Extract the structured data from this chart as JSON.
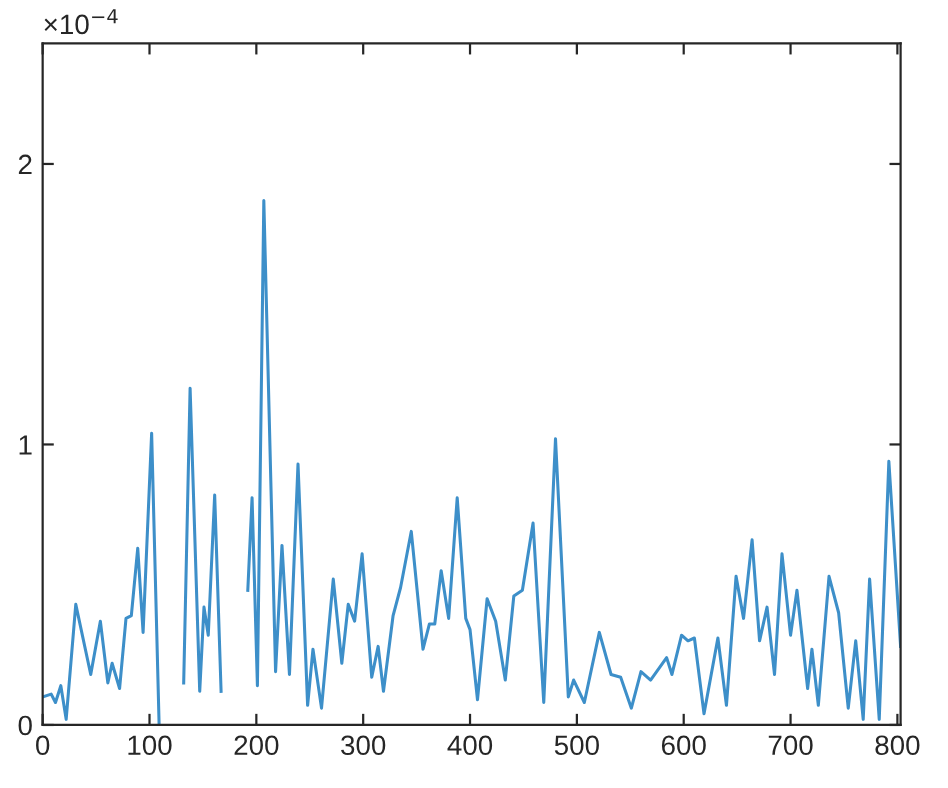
{
  "chart_data": {
    "type": "line",
    "x": [
      0,
      8,
      12,
      17,
      22,
      31,
      45,
      54,
      61,
      65,
      72,
      78,
      83,
      89,
      94,
      102,
      109,
      110,
      116,
      122,
      132,
      138,
      147,
      151,
      155,
      161,
      167,
      171,
      177,
      183,
      192,
      196,
      201,
      207,
      218,
      224,
      231,
      239,
      248,
      253,
      261,
      272,
      280,
      286,
      292,
      299,
      308,
      314,
      319,
      328,
      335,
      345,
      356,
      362,
      367,
      373,
      380,
      388,
      396,
      400,
      407,
      416,
      424,
      433,
      441,
      449,
      459,
      469,
      480,
      492,
      497,
      507,
      521,
      532,
      541,
      551,
      560,
      569,
      584,
      589,
      598,
      604,
      610,
      619,
      632,
      640,
      649,
      656,
      664,
      671,
      678,
      685,
      692,
      700,
      706,
      716,
      720,
      726,
      736,
      745,
      754,
      761,
      768,
      774,
      783,
      792,
      803
    ],
    "series": [
      {
        "color": "#3d8fc9",
        "values": [
          0.1,
          0.11,
          0.08,
          0.14,
          0.02,
          0.43,
          0.18,
          0.37,
          0.15,
          0.22,
          0.13,
          0.38,
          0.39,
          0.63,
          0.33,
          1.04,
          0.0,
          null,
          null,
          null,
          0.15,
          1.2,
          0.12,
          0.42,
          0.32,
          0.82,
          0.12,
          null,
          null,
          null,
          0.48,
          0.81,
          0.14,
          1.87,
          0.19,
          0.64,
          0.18,
          0.93,
          0.07,
          0.27,
          0.06,
          0.52,
          0.22,
          0.43,
          0.37,
          0.61,
          0.17,
          0.28,
          0.12,
          0.39,
          0.49,
          0.69,
          0.27,
          0.36,
          0.36,
          0.55,
          0.38,
          0.81,
          0.38,
          0.34,
          0.09,
          0.45,
          0.37,
          0.16,
          0.46,
          0.48,
          0.72,
          0.08,
          1.02,
          0.1,
          0.16,
          0.08,
          0.33,
          0.18,
          0.17,
          0.06,
          0.19,
          0.16,
          0.24,
          0.18,
          0.32,
          0.3,
          0.31,
          0.04,
          0.31,
          0.07,
          0.53,
          0.38,
          0.66,
          0.3,
          0.42,
          0.18,
          0.61,
          0.32,
          0.48,
          0.13,
          0.27,
          0.07,
          0.53,
          0.4,
          0.06,
          0.3,
          0.02,
          0.52,
          0.02,
          0.94,
          0.28
        ]
      }
    ],
    "xlim": [
      0,
      803
    ],
    "ylim": [
      0,
      2.43
    ],
    "xticks": [
      0,
      100,
      200,
      300,
      400,
      500,
      600,
      700,
      800
    ],
    "yticks": [
      0,
      1,
      2
    ],
    "annotations": [
      "×10$^{−4}$"
    ],
    "grid": false,
    "legend": false,
    "marker": "none",
    "line_style": "solid"
  }
}
